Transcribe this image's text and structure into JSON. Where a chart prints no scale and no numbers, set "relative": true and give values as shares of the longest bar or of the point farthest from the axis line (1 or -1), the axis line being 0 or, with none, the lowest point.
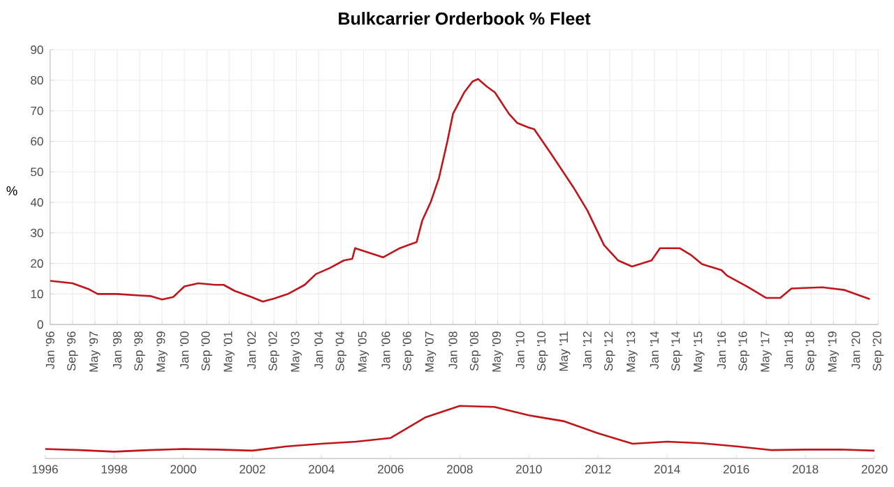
{
  "chart_data": [
    {
      "type": "line",
      "title": "Bulkcarrier Orderbook % Fleet",
      "ylabel": "%",
      "grid": true,
      "color": "#c0161b",
      "x": [
        "1996-01",
        "1996-09",
        "1997-03",
        "1997-06",
        "1998-01",
        "1998-09",
        "1999-01",
        "1999-05",
        "1999-09",
        "2000-01",
        "2000-06",
        "2000-12",
        "2001-03",
        "2001-07",
        "2002-01",
        "2002-05",
        "2002-09",
        "2003-02",
        "2003-08",
        "2003-12",
        "2004-05",
        "2004-10",
        "2005-01",
        "2005-02",
        "2005-07",
        "2005-12",
        "2006-06",
        "2006-09",
        "2006-12",
        "2007-02",
        "2007-05",
        "2007-08",
        "2007-11",
        "2008-01",
        "2008-05",
        "2008-08",
        "2008-10",
        "2009-01",
        "2009-04",
        "2009-09",
        "2009-12",
        "2010-04",
        "2010-06",
        "2010-09",
        "2010-12",
        "2011-08",
        "2012-01",
        "2012-07",
        "2012-12",
        "2013-05",
        "2013-12",
        "2014-03",
        "2014-10",
        "2015-02",
        "2015-06",
        "2016-01",
        "2016-03",
        "2016-10",
        "2017-05",
        "2017-10",
        "2018-02",
        "2019-01",
        "2019-09",
        "2020-06"
      ],
      "values": [
        14.3,
        13.5,
        11.5,
        10.0,
        10.0,
        9.5,
        9.3,
        8.2,
        9.0,
        12.5,
        13.5,
        13.0,
        13.0,
        11.0,
        9.0,
        7.5,
        8.5,
        10.0,
        13.0,
        16.5,
        18.5,
        21.0,
        21.5,
        25.0,
        23.5,
        22.0,
        25.0,
        26.0,
        27.0,
        34.0,
        40.0,
        48.0,
        60.0,
        69.0,
        76.0,
        79.6,
        80.4,
        78.0,
        76.0,
        69.0,
        66.0,
        64.5,
        64.0,
        60.0,
        56.0,
        45.0,
        37.4,
        26.0,
        21.0,
        19.0,
        21.0,
        25.0,
        25.0,
        22.8,
        19.8,
        17.8,
        16.0,
        12.5,
        8.7,
        8.7,
        11.8,
        12.2,
        11.3,
        8.3
      ],
      "xlim": [
        "1996-01",
        "2020-09"
      ],
      "ylim": [
        0,
        90
      ],
      "yticks": [
        0,
        10,
        20,
        30,
        40,
        50,
        60,
        70,
        80,
        90
      ],
      "xticks": [
        {
          "value": "1996-01",
          "label": "Jan '96"
        },
        {
          "value": "1996-09",
          "label": "Sep '96"
        },
        {
          "value": "1997-05",
          "label": "May '97"
        },
        {
          "value": "1998-01",
          "label": "Jan '98"
        },
        {
          "value": "1998-09",
          "label": "Sep '98"
        },
        {
          "value": "1999-05",
          "label": "May '99"
        },
        {
          "value": "2000-01",
          "label": "Jan '00"
        },
        {
          "value": "2000-09",
          "label": "Sep '00"
        },
        {
          "value": "2001-05",
          "label": "May '01"
        },
        {
          "value": "2002-01",
          "label": "Jan '02"
        },
        {
          "value": "2002-09",
          "label": "Sep '02"
        },
        {
          "value": "2003-05",
          "label": "May '03"
        },
        {
          "value": "2004-01",
          "label": "Jan '04"
        },
        {
          "value": "2004-09",
          "label": "Sep '04"
        },
        {
          "value": "2005-05",
          "label": "May '05"
        },
        {
          "value": "2006-01",
          "label": "Jan '06"
        },
        {
          "value": "2006-09",
          "label": "Sep '06"
        },
        {
          "value": "2007-05",
          "label": "May '07"
        },
        {
          "value": "2008-01",
          "label": "Jan '08"
        },
        {
          "value": "2008-09",
          "label": "Sep '08"
        },
        {
          "value": "2009-05",
          "label": "May '09"
        },
        {
          "value": "2010-01",
          "label": "Jan '10"
        },
        {
          "value": "2010-09",
          "label": "Sep '10"
        },
        {
          "value": "2011-05",
          "label": "May '11"
        },
        {
          "value": "2012-01",
          "label": "Jan '12"
        },
        {
          "value": "2012-09",
          "label": "Sep '12"
        },
        {
          "value": "2013-05",
          "label": "May '13"
        },
        {
          "value": "2014-01",
          "label": "Jan '14"
        },
        {
          "value": "2014-09",
          "label": "Sep '14"
        },
        {
          "value": "2015-05",
          "label": "May '15"
        },
        {
          "value": "2016-01",
          "label": "Jan '16"
        },
        {
          "value": "2016-09",
          "label": "Sep '16"
        },
        {
          "value": "2017-05",
          "label": "May '17"
        },
        {
          "value": "2018-01",
          "label": "Jan '18"
        },
        {
          "value": "2018-09",
          "label": "Sep '18"
        },
        {
          "value": "2019-05",
          "label": "May '19"
        },
        {
          "value": "2020-01",
          "label": "Jan '20"
        },
        {
          "value": "2020-09",
          "label": "Sep '20"
        }
      ]
    },
    {
      "type": "line",
      "relative": true,
      "color": "#c0161b",
      "x": [
        1996,
        1997,
        1998,
        1999,
        2000,
        2001,
        2002,
        2003,
        2004,
        2005,
        2006,
        2007,
        2008,
        2009,
        2010,
        2011,
        2012,
        2013,
        2014,
        2015,
        2016,
        2017,
        2018,
        2019,
        2020
      ],
      "values": [
        0.18,
        0.16,
        0.13,
        0.16,
        0.18,
        0.17,
        0.15,
        0.23,
        0.28,
        0.32,
        0.39,
        0.78,
        1.0,
        0.98,
        0.82,
        0.71,
        0.48,
        0.28,
        0.32,
        0.29,
        0.23,
        0.16,
        0.17,
        0.17,
        0.15
      ],
      "xlim": [
        1996,
        2020
      ],
      "xticks": [
        1996,
        1998,
        2000,
        2002,
        2004,
        2006,
        2008,
        2010,
        2012,
        2014,
        2016,
        2018,
        2020
      ]
    }
  ]
}
